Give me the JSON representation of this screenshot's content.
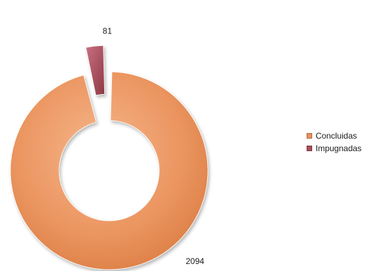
{
  "chart_data": {
    "type": "pie",
    "subtype": "doughnut-exploded",
    "title": "",
    "categories": [
      "Concluidas",
      "Impugnadas"
    ],
    "values": [
      2094,
      81
    ],
    "data_labels": [
      "2094",
      "81"
    ],
    "colors": [
      "#e9925a",
      "#a94e5a"
    ],
    "legend": {
      "position": "right",
      "entries": [
        "Concluidas",
        "Impugnadas"
      ]
    },
    "exploded_slice": "Impugnadas"
  }
}
